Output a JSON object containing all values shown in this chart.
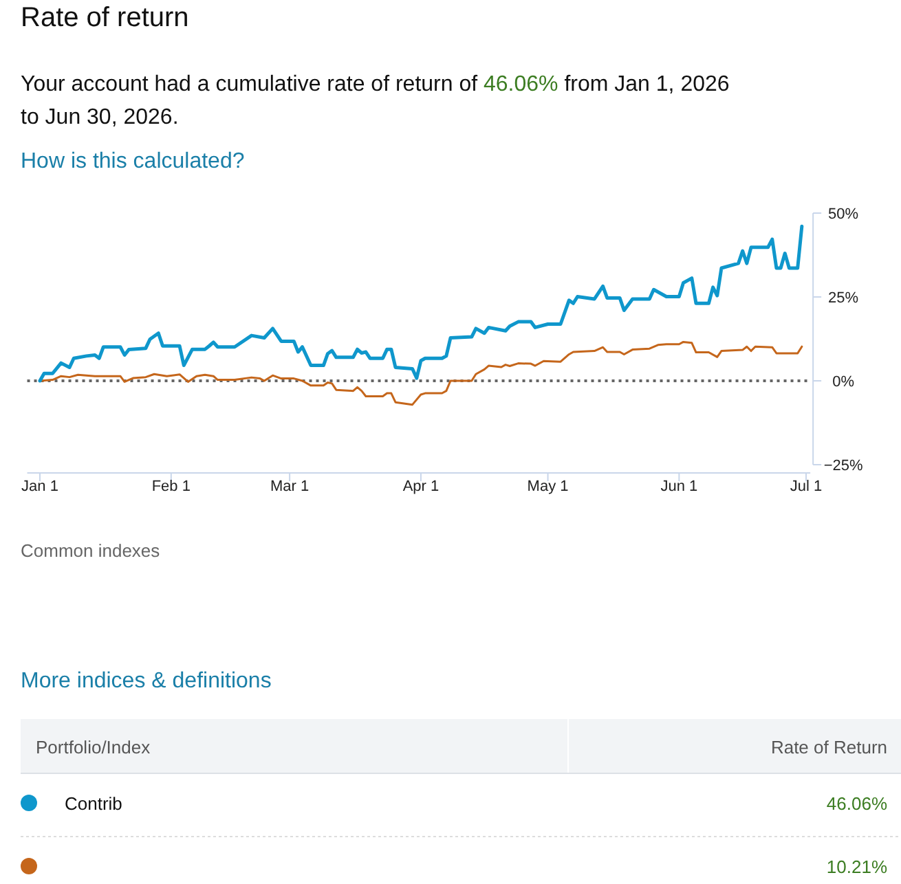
{
  "chart_data": {
    "type": "line",
    "title": "Rate of return",
    "subtitle": "Your account had a cumulative rate of return of 46.06% from Jan 1, 2026 to Jun 30, 2026.",
    "xlim": [
      "2025-12-29",
      "2026-07-02"
    ],
    "xticks": [
      {
        "value": "2026-01-01",
        "label": "Jan 1"
      },
      {
        "value": "2026-02-01",
        "label": "Feb 1"
      },
      {
        "value": "2026-03-01",
        "label": "Mar 1"
      },
      {
        "value": "2026-04-01",
        "label": "Apr 1"
      },
      {
        "value": "2026-05-01",
        "label": "May 1"
      },
      {
        "value": "2026-06-01",
        "label": "Jun 1"
      },
      {
        "value": "2026-07-01",
        "label": "Jul 1"
      }
    ],
    "ylim": [
      -25,
      50
    ],
    "yticks": [
      {
        "value": -25,
        "label": "−25%"
      },
      {
        "value": 0,
        "label": "0%"
      },
      {
        "value": 25,
        "label": "25%"
      },
      {
        "value": 50,
        "label": "50%"
      }
    ],
    "grid": false,
    "legend": "bottom",
    "marker": "none",
    "ref_lines": [
      {
        "axis": "y",
        "value": 0,
        "label": null,
        "color": "#666666",
        "line_style": "dotted"
      }
    ],
    "series": [
      {
        "name": "Contrib",
        "color": "#0f97cc",
        "x": [
          "2026-01-01",
          "2026-01-02",
          "2026-01-04",
          "2026-01-06",
          "2026-01-08",
          "2026-01-09",
          "2026-01-12",
          "2026-01-14",
          "2026-01-15",
          "2026-01-16",
          "2026-01-20",
          "2026-01-21",
          "2026-01-22",
          "2026-01-26",
          "2026-01-27",
          "2026-01-29",
          "2026-01-30",
          "2026-02-03",
          "2026-02-04",
          "2026-02-06",
          "2026-02-09",
          "2026-02-10",
          "2026-02-11",
          "2026-02-12",
          "2026-02-16",
          "2026-02-20",
          "2026-02-23",
          "2026-02-25",
          "2026-02-27",
          "2026-03-02",
          "2026-03-03",
          "2026-03-04",
          "2026-03-06",
          "2026-03-09",
          "2026-03-10",
          "2026-03-11",
          "2026-03-12",
          "2026-03-16",
          "2026-03-17",
          "2026-03-18",
          "2026-03-19",
          "2026-03-20",
          "2026-03-23",
          "2026-03-24",
          "2026-03-25",
          "2026-03-26",
          "2026-03-30",
          "2026-03-31",
          "2026-04-01",
          "2026-04-02",
          "2026-04-06",
          "2026-04-07",
          "2026-04-08",
          "2026-04-13",
          "2026-04-14",
          "2026-04-16",
          "2026-04-17",
          "2026-04-21",
          "2026-04-22",
          "2026-04-24",
          "2026-04-27",
          "2026-04-28",
          "2026-05-01",
          "2026-05-04",
          "2026-05-06",
          "2026-05-07",
          "2026-05-08",
          "2026-05-12",
          "2026-05-14",
          "2026-05-15",
          "2026-05-18",
          "2026-05-19",
          "2026-05-21",
          "2026-05-25",
          "2026-05-26",
          "2026-05-29",
          "2026-06-01",
          "2026-06-02",
          "2026-06-04",
          "2026-06-05",
          "2026-06-08",
          "2026-06-09",
          "2026-06-10",
          "2026-06-11",
          "2026-06-15",
          "2026-06-16",
          "2026-06-17",
          "2026-06-18",
          "2026-06-22",
          "2026-06-23",
          "2026-06-24",
          "2026-06-25",
          "2026-06-26",
          "2026-06-27",
          "2026-06-29",
          "2026-06-30"
        ],
        "values": [
          0,
          2.2,
          2.2,
          5.3,
          4.0,
          6.7,
          7.4,
          7.7,
          6.7,
          10.1,
          10.1,
          7.7,
          9.3,
          9.7,
          12.4,
          14.2,
          10.4,
          10.4,
          4.6,
          9.4,
          9.4,
          10.4,
          11.5,
          10.1,
          10.1,
          13.5,
          12.8,
          15.6,
          11.8,
          11.8,
          8.6,
          10.1,
          4.6,
          4.6,
          8.1,
          9.0,
          7.0,
          7.0,
          9.4,
          8.3,
          8.6,
          6.7,
          6.7,
          9.4,
          9.4,
          4.0,
          3.6,
          0.8,
          6.0,
          6.7,
          6.7,
          7.4,
          12.8,
          13.1,
          15.6,
          14.2,
          15.9,
          14.9,
          16.3,
          17.6,
          17.6,
          15.9,
          16.9,
          16.9,
          24.0,
          23.1,
          25.1,
          24.4,
          28.2,
          24.7,
          24.7,
          21.0,
          24.4,
          24.4,
          27.2,
          25.1,
          25.1,
          29.2,
          30.6,
          23.1,
          23.1,
          27.9,
          25.4,
          33.6,
          35.0,
          38.7,
          35.0,
          39.8,
          39.8,
          42.2,
          33.6,
          33.6,
          38.0,
          33.6,
          33.6,
          46.06
        ]
      },
      {
        "color": "#c5661b",
        "x": [
          "2026-01-01",
          "2026-01-04",
          "2026-01-06",
          "2026-01-08",
          "2026-01-10",
          "2026-01-14",
          "2026-01-20",
          "2026-01-21",
          "2026-01-23",
          "2026-01-26",
          "2026-01-28",
          "2026-01-31",
          "2026-02-03",
          "2026-02-05",
          "2026-02-07",
          "2026-02-09",
          "2026-02-11",
          "2026-02-12",
          "2026-02-16",
          "2026-02-20",
          "2026-02-22",
          "2026-02-23",
          "2026-02-25",
          "2026-02-27",
          "2026-03-02",
          "2026-03-04",
          "2026-03-06",
          "2026-03-09",
          "2026-03-10",
          "2026-03-11",
          "2026-03-12",
          "2026-03-16",
          "2026-03-17",
          "2026-03-18",
          "2026-03-19",
          "2026-03-23",
          "2026-03-24",
          "2026-03-25",
          "2026-03-26",
          "2026-03-30",
          "2026-04-01",
          "2026-04-02",
          "2026-04-06",
          "2026-04-07",
          "2026-04-08",
          "2026-04-13",
          "2026-04-14",
          "2026-04-16",
          "2026-04-17",
          "2026-04-20",
          "2026-04-21",
          "2026-04-22",
          "2026-04-24",
          "2026-04-27",
          "2026-04-28",
          "2026-04-30",
          "2026-05-04",
          "2026-05-06",
          "2026-05-07",
          "2026-05-12",
          "2026-05-14",
          "2026-05-15",
          "2026-05-18",
          "2026-05-19",
          "2026-05-21",
          "2026-05-25",
          "2026-05-27",
          "2026-05-29",
          "2026-06-01",
          "2026-06-02",
          "2026-06-04",
          "2026-06-05",
          "2026-06-08",
          "2026-06-10",
          "2026-06-11",
          "2026-06-16",
          "2026-06-17",
          "2026-06-18",
          "2026-06-19",
          "2026-06-23",
          "2026-06-24",
          "2026-06-29",
          "2026-06-30"
        ],
        "values": [
          0,
          0.3,
          1.4,
          1.1,
          1.8,
          1.4,
          1.4,
          -0.3,
          0.8,
          1.1,
          2.0,
          1.4,
          1.9,
          -0.3,
          1.4,
          1.8,
          1.4,
          0.3,
          0.3,
          1.0,
          0.7,
          0,
          1.6,
          0.7,
          0.7,
          0,
          -1.4,
          -1.4,
          -0.5,
          -0.8,
          -2.7,
          -3.0,
          -1.9,
          -3.0,
          -4.6,
          -4.6,
          -3.7,
          -3.7,
          -6.4,
          -7.1,
          -4.1,
          -3.7,
          -3.7,
          -3.0,
          0,
          0,
          2.0,
          3.4,
          4.5,
          4.1,
          4.8,
          4.4,
          5.2,
          5.1,
          4.5,
          5.9,
          5.7,
          7.9,
          8.6,
          8.9,
          10.0,
          8.6,
          8.6,
          7.9,
          9.3,
          9.6,
          10.7,
          10.9,
          10.9,
          11.6,
          11.3,
          8.5,
          8.5,
          7.1,
          8.9,
          9.2,
          10.2,
          8.9,
          10.2,
          10.0,
          8.2,
          8.2,
          10.21
        ]
      }
    ],
    "annotations": [
      "How is this calculated?",
      "Common indexes",
      "More indices & definitions",
      "Portfolio/Index",
      "Rate of Return",
      "46.06%",
      "10.21%"
    ]
  }
}
